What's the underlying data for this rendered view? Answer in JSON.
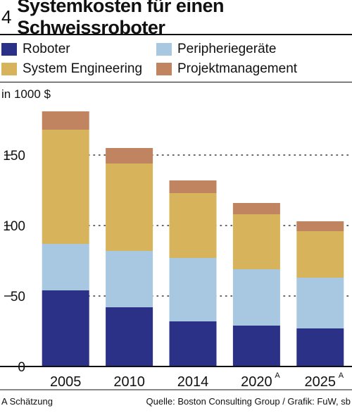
{
  "figure_number": "4",
  "title": "Systemkosten für einen Schweissroboter",
  "unit_label": "in 1000 $",
  "footer": {
    "note": "A Schätzung",
    "source": "Quelle: Boston Consulting Group / Grafik: FuW, sb"
  },
  "colors": {
    "Roboter": "#2a3186",
    "Peripheriegeräte": "#a8c8e2",
    "System Engineering": "#d7b35c",
    "Projektmanagement": "#c08560"
  },
  "legend": [
    "Roboter",
    "Peripheriegeräte",
    "System Engineering",
    "Projektmanagement"
  ],
  "chart_data": {
    "type": "bar",
    "stacked": true,
    "categories": [
      "2005",
      "2010",
      "2014",
      "2020",
      "2025"
    ],
    "category_superscripts": [
      "",
      "",
      "",
      "A",
      "A"
    ],
    "series": [
      {
        "name": "Roboter",
        "values": [
          54,
          42,
          32,
          29,
          27
        ]
      },
      {
        "name": "Peripheriegeräte",
        "values": [
          33,
          40,
          45,
          40,
          36
        ]
      },
      {
        "name": "System Engineering",
        "values": [
          81,
          62,
          46,
          39,
          33
        ]
      },
      {
        "name": "Projektmanagement",
        "values": [
          13,
          11,
          9,
          8,
          7
        ]
      }
    ],
    "y_ticks": [
      0,
      50,
      100,
      150
    ],
    "ylim": [
      0,
      190
    ],
    "grid": "dotted"
  }
}
